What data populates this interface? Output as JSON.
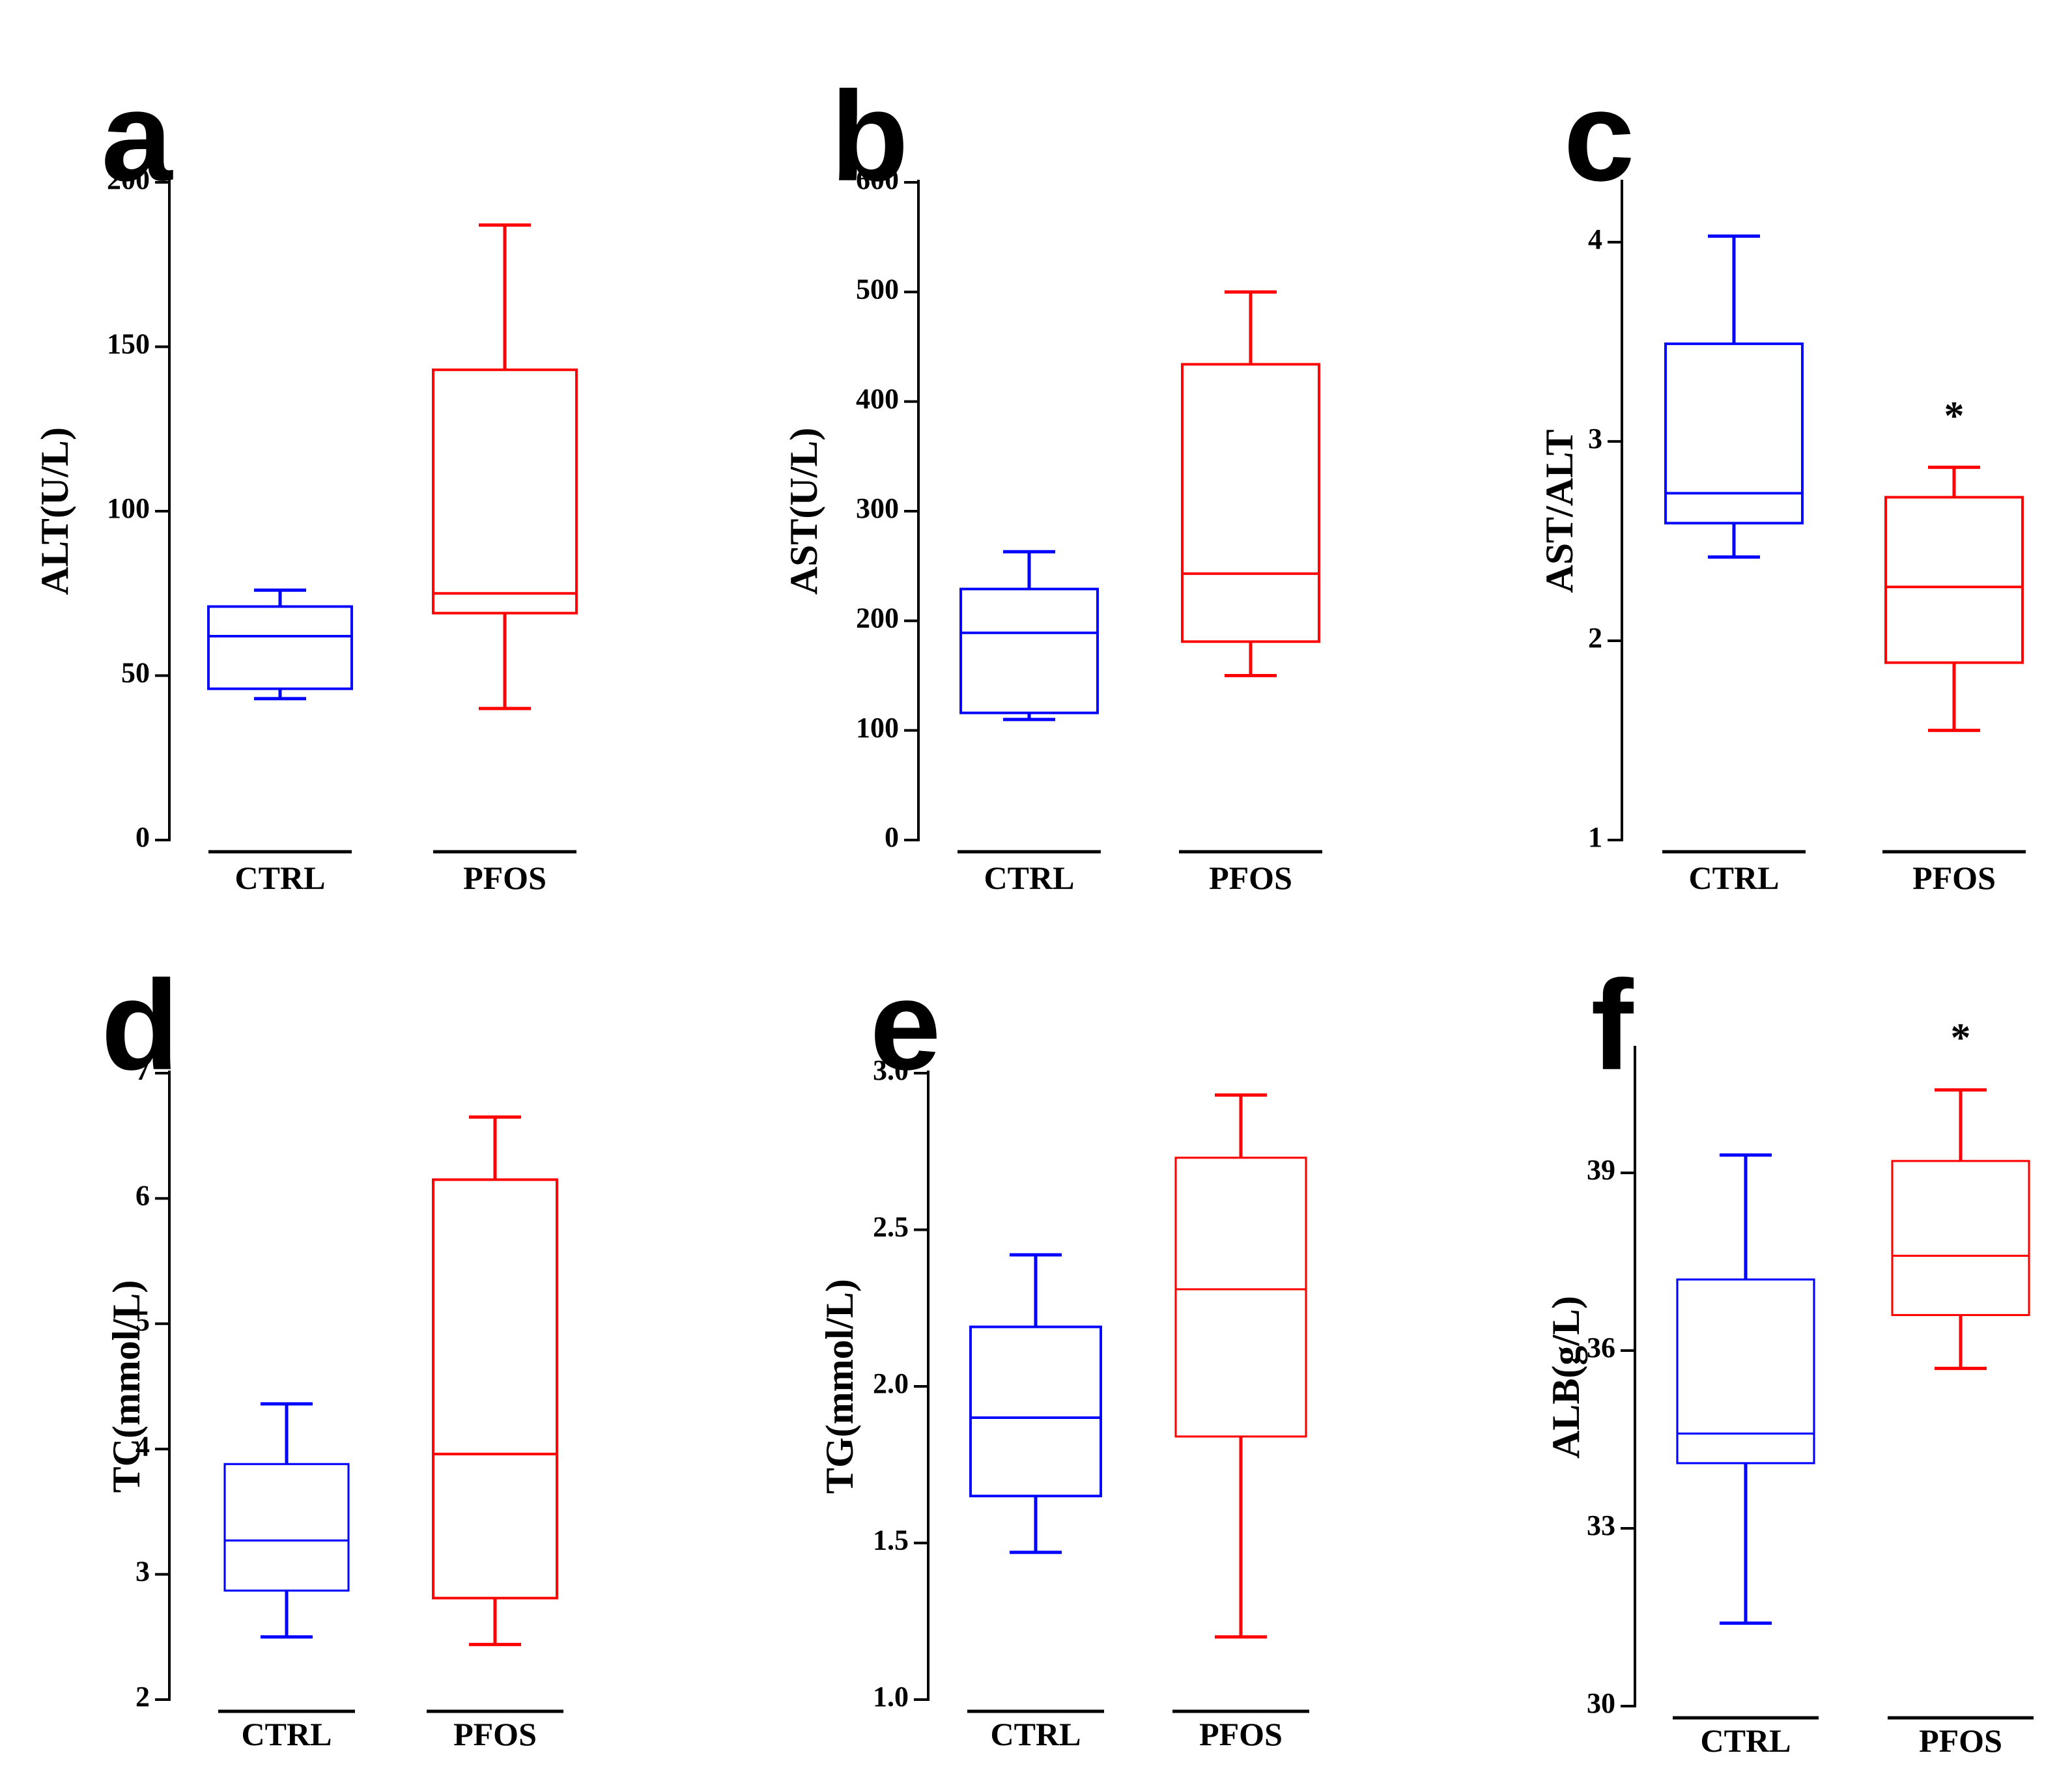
{
  "colors": {
    "ctrl": "#0000ff",
    "pfos": "#ff0000",
    "axis": "#000000"
  },
  "chart_data": [
    {
      "type": "box",
      "panel": "a",
      "ylabel": "ALT(U/L)",
      "ylim": [
        0,
        200
      ],
      "yticks": [
        0,
        50,
        100,
        150,
        200
      ],
      "tick_labels": [
        "0",
        "50",
        "100",
        "150",
        "200"
      ],
      "categories": [
        "CTRL",
        "PFOS"
      ],
      "series": [
        {
          "name": "CTRL",
          "min": 43,
          "q1": 46,
          "median": 62,
          "q3": 71,
          "max": 76,
          "annotation": ""
        },
        {
          "name": "PFOS",
          "min": 40,
          "q1": 69,
          "median": 75,
          "q3": 143,
          "max": 187,
          "annotation": ""
        }
      ]
    },
    {
      "type": "box",
      "panel": "b",
      "ylabel": "AST(U/L)",
      "ylim": [
        0,
        600
      ],
      "yticks": [
        0,
        100,
        200,
        300,
        400,
        500,
        600
      ],
      "tick_labels": [
        "0",
        "100",
        "200",
        "300",
        "400",
        "500",
        "600"
      ],
      "categories": [
        "CTRL",
        "PFOS"
      ],
      "series": [
        {
          "name": "CTRL",
          "min": 110,
          "q1": 116,
          "median": 189,
          "q3": 229,
          "max": 263,
          "annotation": ""
        },
        {
          "name": "PFOS",
          "min": 150,
          "q1": 181,
          "median": 243,
          "q3": 434,
          "max": 500,
          "annotation": ""
        }
      ]
    },
    {
      "type": "box",
      "panel": "c",
      "ylabel": "AST/ALT",
      "ylim": [
        1,
        4.3
      ],
      "yticks": [
        1,
        2,
        3,
        4
      ],
      "tick_labels": [
        "1",
        "2",
        "3",
        "4"
      ],
      "categories": [
        "CTRL",
        "PFOS"
      ],
      "series": [
        {
          "name": "CTRL",
          "min": 2.42,
          "q1": 2.59,
          "median": 2.74,
          "q3": 3.49,
          "max": 4.03,
          "annotation": ""
        },
        {
          "name": "PFOS",
          "min": 1.55,
          "q1": 1.89,
          "median": 2.27,
          "q3": 2.72,
          "max": 2.87,
          "annotation": "*"
        }
      ]
    },
    {
      "type": "box",
      "panel": "d",
      "ylabel": "TC(mmol/L)",
      "ylim": [
        2,
        7
      ],
      "yticks": [
        2,
        3,
        4,
        5,
        6,
        7
      ],
      "tick_labels": [
        "2",
        "3",
        "4",
        "5",
        "6",
        "7"
      ],
      "categories": [
        "CTRL",
        "PFOS"
      ],
      "series": [
        {
          "name": "CTRL",
          "min": 2.5,
          "q1": 2.87,
          "median": 3.27,
          "q3": 3.88,
          "max": 4.36,
          "annotation": ""
        },
        {
          "name": "PFOS",
          "min": 2.44,
          "q1": 2.81,
          "median": 3.96,
          "q3": 6.15,
          "max": 6.65,
          "annotation": ""
        }
      ]
    },
    {
      "type": "box",
      "panel": "e",
      "ylabel": "TG(mmol/L)",
      "ylim": [
        1.0,
        3.0
      ],
      "yticks": [
        1.0,
        1.5,
        2.0,
        2.5,
        3.0
      ],
      "tick_labels": [
        "1.0",
        "1.5",
        "2.0",
        "2.5",
        "3.0"
      ],
      "categories": [
        "CTRL",
        "PFOS"
      ],
      "series": [
        {
          "name": "CTRL",
          "min": 1.47,
          "q1": 1.65,
          "median": 1.9,
          "q3": 2.19,
          "max": 2.42,
          "annotation": ""
        },
        {
          "name": "PFOS",
          "min": 1.2,
          "q1": 1.84,
          "median": 2.31,
          "q3": 2.73,
          "max": 2.93,
          "annotation": ""
        }
      ]
    },
    {
      "type": "box",
      "panel": "f",
      "ylabel": "ALB(g/L)",
      "ylim": [
        30,
        41.1
      ],
      "yticks": [
        30,
        33,
        36,
        39
      ],
      "tick_labels": [
        "30",
        "33",
        "36",
        "39"
      ],
      "categories": [
        "CTRL",
        "PFOS"
      ],
      "series": [
        {
          "name": "CTRL",
          "min": 31.4,
          "q1": 34.1,
          "median": 34.6,
          "q3": 37.2,
          "max": 39.3,
          "annotation": ""
        },
        {
          "name": "PFOS",
          "min": 35.7,
          "q1": 36.6,
          "median": 37.6,
          "q3": 39.2,
          "max": 40.4,
          "annotation": "*"
        }
      ]
    }
  ]
}
